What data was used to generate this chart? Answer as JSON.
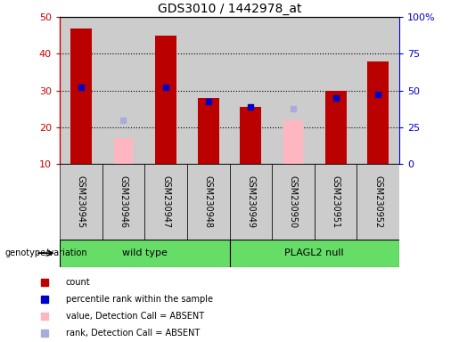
{
  "title": "GDS3010 / 1442978_at",
  "samples": [
    "GSM230945",
    "GSM230946",
    "GSM230947",
    "GSM230948",
    "GSM230949",
    "GSM230950",
    "GSM230951",
    "GSM230952"
  ],
  "count_values": [
    47,
    null,
    45,
    28,
    25.5,
    null,
    30,
    38
  ],
  "count_absent_values": [
    null,
    17,
    null,
    null,
    null,
    22,
    null,
    null
  ],
  "rank_values": [
    31,
    null,
    31,
    27,
    25.5,
    null,
    28,
    29
  ],
  "rank_absent_values": [
    null,
    22,
    null,
    null,
    null,
    25,
    null,
    null
  ],
  "ylim_left": [
    10,
    50
  ],
  "ylim_right": [
    0,
    100
  ],
  "yticks_left": [
    10,
    20,
    30,
    40,
    50
  ],
  "yticks_right": [
    0,
    25,
    50,
    75,
    100
  ],
  "ytick_labels_right": [
    "0",
    "25",
    "50",
    "75",
    "100%"
  ],
  "group_color": "#66DD66",
  "bar_width": 0.5,
  "count_color": "#BB0000",
  "rank_color": "#0000CC",
  "count_absent_color": "#FFB6C1",
  "rank_absent_color": "#AAAADD",
  "bg_color": "#CCCCCC",
  "plot_bg": "#FFFFFF",
  "left_axis_color": "#CC0000",
  "right_axis_color": "#0000CC",
  "genotype_label": "genotype/variation",
  "legend_items": [
    {
      "label": "count",
      "color": "#BB0000",
      "marker": "s"
    },
    {
      "label": "percentile rank within the sample",
      "color": "#0000CC",
      "marker": "s"
    },
    {
      "label": "value, Detection Call = ABSENT",
      "color": "#FFB6C1",
      "marker": "s"
    },
    {
      "label": "rank, Detection Call = ABSENT",
      "color": "#AAAADD",
      "marker": "s"
    }
  ]
}
